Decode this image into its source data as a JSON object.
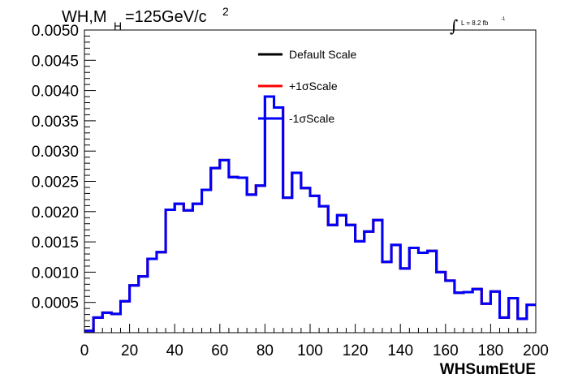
{
  "chart_data": {
    "type": "line",
    "title": {
      "main": "WH,M",
      "sub": "H",
      "rest": "=125GeV/c",
      "sup": "2"
    },
    "luminosity": {
      "integral": "∫",
      "text": "L = 8.2 fb",
      "sup": "-1"
    },
    "xlabel": "WHSumEtUE",
    "ylabel": "",
    "xlim": [
      0,
      200
    ],
    "ylim": [
      0,
      0.005
    ],
    "x_ticks": [
      "0",
      "20",
      "40",
      "60",
      "80",
      "100",
      "120",
      "140",
      "160",
      "180",
      "200"
    ],
    "y_ticks": [
      "0.0005",
      "0.0010",
      "0.0015",
      "0.0020",
      "0.0025",
      "0.0030",
      "0.0035",
      "0.0040",
      "0.0045",
      "0.0050"
    ],
    "bin_width": 4,
    "grid": false,
    "legend_position": "top-center",
    "series": [
      {
        "name": "Default Scale",
        "color": "#000000"
      },
      {
        "name": "+1σScale",
        "color": "#ff0000"
      },
      {
        "name": "-1σScale",
        "color": "#0000ff"
      }
    ],
    "bins_x": [
      0,
      4,
      8,
      12,
      16,
      20,
      24,
      28,
      32,
      36,
      40,
      44,
      48,
      52,
      56,
      60,
      64,
      68,
      72,
      76,
      80,
      84,
      88,
      92,
      96,
      100,
      104,
      108,
      112,
      116,
      120,
      124,
      128,
      132,
      136,
      140,
      144,
      148,
      152,
      156,
      160,
      164,
      168,
      172,
      176,
      180,
      184,
      188,
      192,
      196
    ],
    "values": [
      3e-05,
      0.00025,
      0.00033,
      0.00031,
      0.00052,
      0.00078,
      0.00093,
      0.00122,
      0.00133,
      0.00203,
      0.00213,
      0.00202,
      0.00213,
      0.00236,
      0.00272,
      0.00285,
      0.00257,
      0.00256,
      0.00228,
      0.00243,
      0.0039,
      0.00372,
      0.00223,
      0.00264,
      0.00239,
      0.00226,
      0.00209,
      0.00178,
      0.00194,
      0.00178,
      0.00151,
      0.00167,
      0.00186,
      0.00117,
      0.00145,
      0.00106,
      0.0014,
      0.00132,
      0.00135,
      0.001,
      0.00086,
      0.00066,
      0.00067,
      0.00072,
      0.00048,
      0.00068,
      0.00025,
      0.00057,
      0.00023,
      0.00046
    ]
  }
}
